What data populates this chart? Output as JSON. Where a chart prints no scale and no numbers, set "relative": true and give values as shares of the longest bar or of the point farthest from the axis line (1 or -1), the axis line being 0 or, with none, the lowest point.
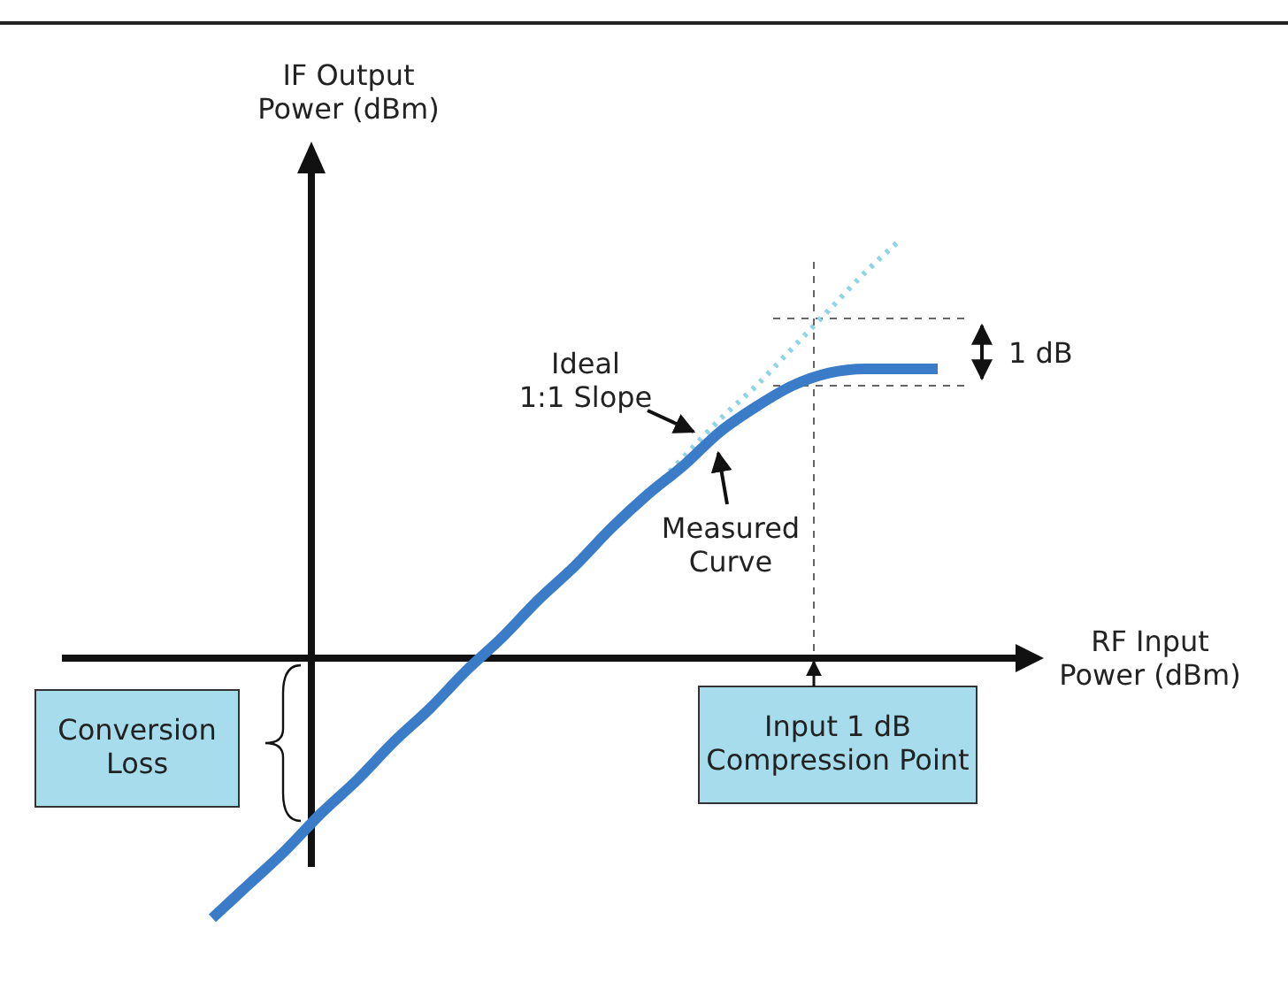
{
  "chart_data": {
    "type": "line",
    "relative": true,
    "xlabel": "RF Input Power (dBm)",
    "ylabel": "IF Output Power (dBm)",
    "categories": [
      null,
      null,
      null,
      null,
      null,
      null,
      null,
      null,
      null,
      null,
      null,
      null,
      null,
      null,
      null,
      null,
      null,
      null,
      null,
      null,
      null
    ],
    "series": [
      {
        "name": "Measured Curve",
        "color": "#3b7cc9",
        "line_style": "solid",
        "values": [
          -0.62,
          -0.54,
          -0.46,
          -0.37,
          -0.29,
          -0.2,
          -0.12,
          -0.03,
          0.05,
          0.14,
          0.22,
          0.31,
          0.39,
          0.46,
          0.54,
          0.6,
          0.65,
          0.68,
          0.69,
          0.69,
          0.69
        ]
      },
      {
        "name": "Ideal 1:1 Slope",
        "color": "#8fd3e8",
        "line_style": "dotted",
        "values": [
          null,
          null,
          null,
          null,
          null,
          null,
          null,
          null,
          null,
          null,
          null,
          null,
          0.39,
          0.48,
          0.57,
          0.65,
          0.74,
          0.83,
          0.92,
          1,
          null
        ]
      }
    ],
    "ref_lines": [
      {
        "axis": "y",
        "value": 0.81,
        "color": "#666666",
        "line_style": "dashed"
      },
      {
        "axis": "y",
        "value": 0.65,
        "color": "#666666",
        "line_style": "dashed"
      }
    ],
    "annotations": [
      "1 dB",
      "Conversion Loss",
      "Input 1 dB Compression Point"
    ],
    "legend": false,
    "marker": "none",
    "grid": false
  }
}
